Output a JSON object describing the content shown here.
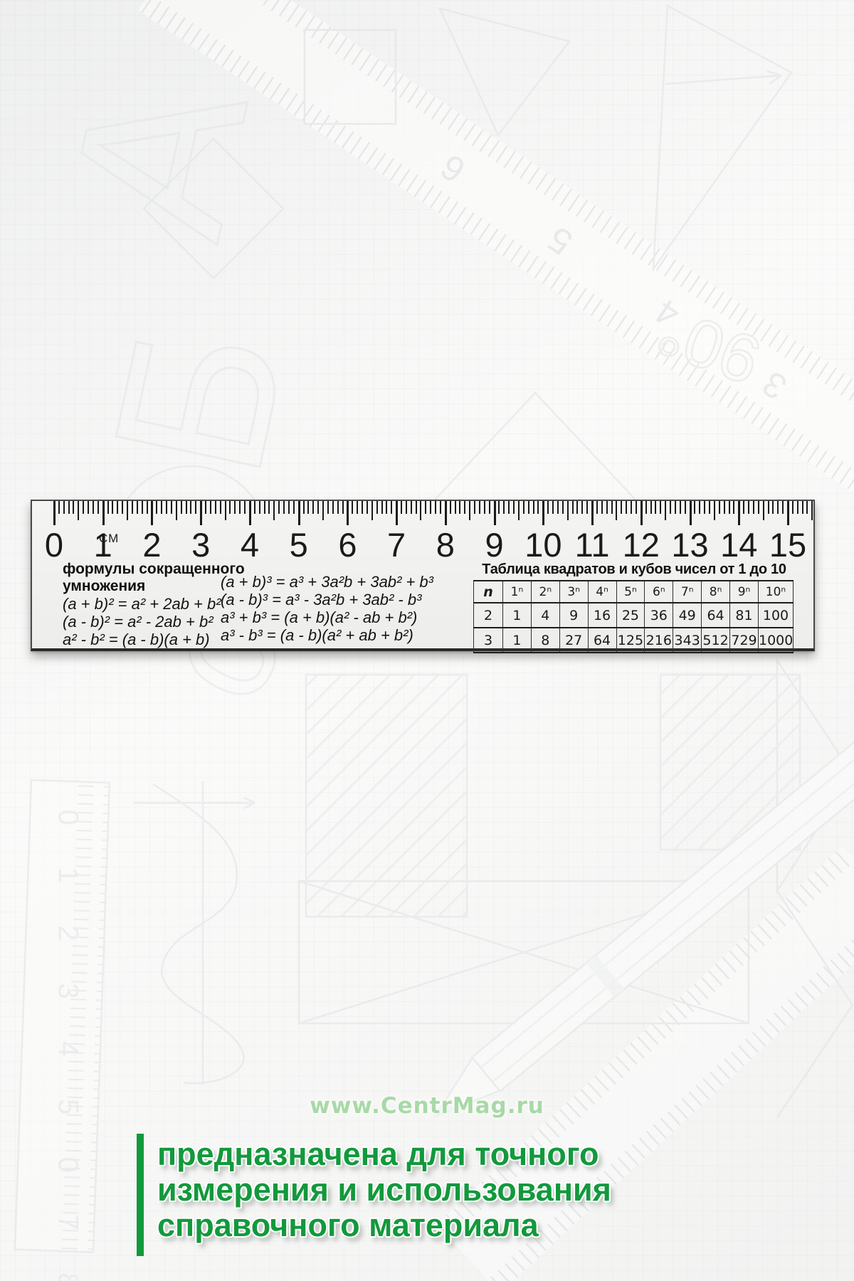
{
  "colors": {
    "accent_green": "#12993c",
    "watermark_green": "#a8d9a6",
    "ruler_ink": "#1a1a1a"
  },
  "watermark": {
    "text": "www.CentrMag.ru"
  },
  "slogan": {
    "lines": [
      "предназначена для точного",
      "измерения и использования",
      "справочного материала"
    ]
  },
  "ruler": {
    "unit_label": "СМ",
    "scale_numbers": [
      "0",
      "1",
      "2",
      "3",
      "4",
      "5",
      "6",
      "7",
      "8",
      "9",
      "10",
      "11",
      "12",
      "13",
      "14",
      "15"
    ],
    "formulas": {
      "title_line1": "формулы сокращенного",
      "title_line2": "умножения",
      "left": [
        "(a + b)² = a² + 2ab + b²",
        "(a - b)² = a² - 2ab + b²",
        "a² -  b² = (a - b)(a + b)"
      ],
      "right": [
        "(a + b)³ = a³ + 3a²b + 3ab² + b³",
        "(a - b)³ = a³ - 3a²b + 3ab² - b³",
        "a³ +  b³ = (a + b)(a² - ab + b²)",
        "a³ -  b³ = (a - b)(a² + ab + b²)"
      ]
    },
    "table": {
      "title": "Таблица квадратов и кубов чисел от 1 до 10",
      "col_headers": [
        "n",
        "1ⁿ",
        "2ⁿ",
        "3ⁿ",
        "4ⁿ",
        "5ⁿ",
        "6ⁿ",
        "7ⁿ",
        "8ⁿ",
        "9ⁿ",
        "10ⁿ"
      ],
      "rows": [
        [
          "2",
          "1",
          "4",
          "9",
          "16",
          "25",
          "36",
          "49",
          "64",
          "81",
          "100"
        ],
        [
          "3",
          "1",
          "8",
          "27",
          "64",
          "125",
          "216",
          "343",
          "512",
          "729",
          "1000"
        ]
      ]
    }
  },
  "background": {
    "letter_a": "А",
    "letter_b": "Б",
    "letter_c": "с",
    "angle_label": "90°",
    "sketch_ruler_digits": "3 4 5 6",
    "side_ruler_digits": "0 1 2 3 4 5 0 7 8"
  }
}
